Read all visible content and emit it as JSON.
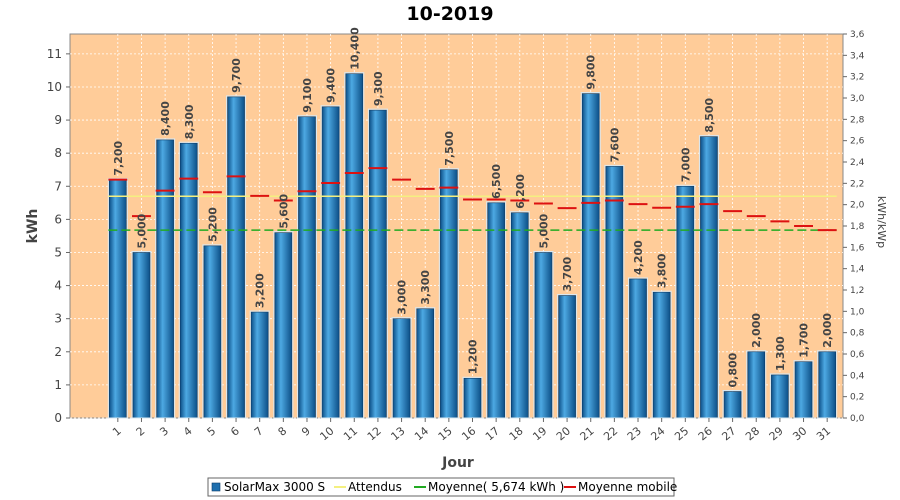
{
  "chart_data": {
    "type": "bar",
    "title": "10-2019",
    "xlabel": "Jour",
    "ylabel": "kWh",
    "ylabel_right": "kWh/kWp",
    "ylim": [
      0,
      11.6
    ],
    "ylim_right": [
      0,
      3.6
    ],
    "yticks": [
      "0",
      "1",
      "2",
      "3",
      "4",
      "5",
      "6",
      "7",
      "8",
      "9",
      "10",
      "11"
    ],
    "yticks_right": [
      "0,0",
      "0,2",
      "0,4",
      "0,6",
      "0,8",
      "1,0",
      "1,2",
      "1,4",
      "1,6",
      "1,8",
      "2,0",
      "2,2",
      "2,4",
      "2,6",
      "2,8",
      "3,0",
      "3,2",
      "3,4",
      "3,6"
    ],
    "categories": [
      "1",
      "2",
      "3",
      "4",
      "5",
      "6",
      "7",
      "8",
      "9",
      "10",
      "11",
      "12",
      "13",
      "14",
      "15",
      "16",
      "17",
      "18",
      "19",
      "20",
      "21",
      "22",
      "23",
      "24",
      "25",
      "26",
      "27",
      "28",
      "29",
      "30",
      "31"
    ],
    "series": [
      {
        "name": "SolarMax 3000 S",
        "values": [
          7.2,
          5.0,
          8.4,
          8.3,
          5.2,
          9.7,
          3.2,
          5.6,
          9.1,
          9.4,
          10.4,
          9.3,
          3.0,
          3.3,
          7.5,
          1.2,
          6.5,
          6.2,
          5.0,
          3.7,
          9.8,
          7.6,
          4.2,
          3.8,
          7.0,
          8.5,
          0.8,
          2.0,
          1.3,
          1.7,
          2.0
        ],
        "labels": [
          "7,200",
          "5,000",
          "8,400",
          "8,300",
          "5,200",
          "9,700",
          "3,200",
          "5,600",
          "9,100",
          "9,400",
          "10,400",
          "9,300",
          "3,000",
          "3,300",
          "7,500",
          "1,200",
          "6,500",
          "6,200",
          "5,000",
          "3,700",
          "9,800",
          "7,600",
          "4,200",
          "3,800",
          "7,000",
          "8,500",
          "0,800",
          "2,000",
          "1,300",
          "1,700",
          "2,000"
        ],
        "color": "#1f6fae"
      },
      {
        "name": "Attendus",
        "constant": 6.7,
        "color": "#f4f080"
      },
      {
        "name": "Moyenne( 5,674 kWh )",
        "constant": 5.674,
        "color": "#22aa22"
      },
      {
        "name": "Moyenne mobile",
        "values": [
          7.2,
          6.1,
          6.87,
          7.23,
          6.82,
          7.3,
          6.71,
          6.57,
          6.85,
          7.1,
          7.4,
          7.55,
          7.2,
          6.92,
          6.96,
          6.6,
          6.6,
          6.57,
          6.48,
          6.34,
          6.5,
          6.57,
          6.46,
          6.35,
          6.38,
          6.46,
          6.25,
          6.1,
          5.94,
          5.8,
          5.674
        ],
        "color": "#dd1111"
      }
    ],
    "grid": true,
    "legend_position": "bottom",
    "colors": {
      "plot_bg": "#ffcc99",
      "bar": "#1f6fae",
      "bar_light": "#4da9e3",
      "bar_dark": "#0c4f87"
    }
  }
}
